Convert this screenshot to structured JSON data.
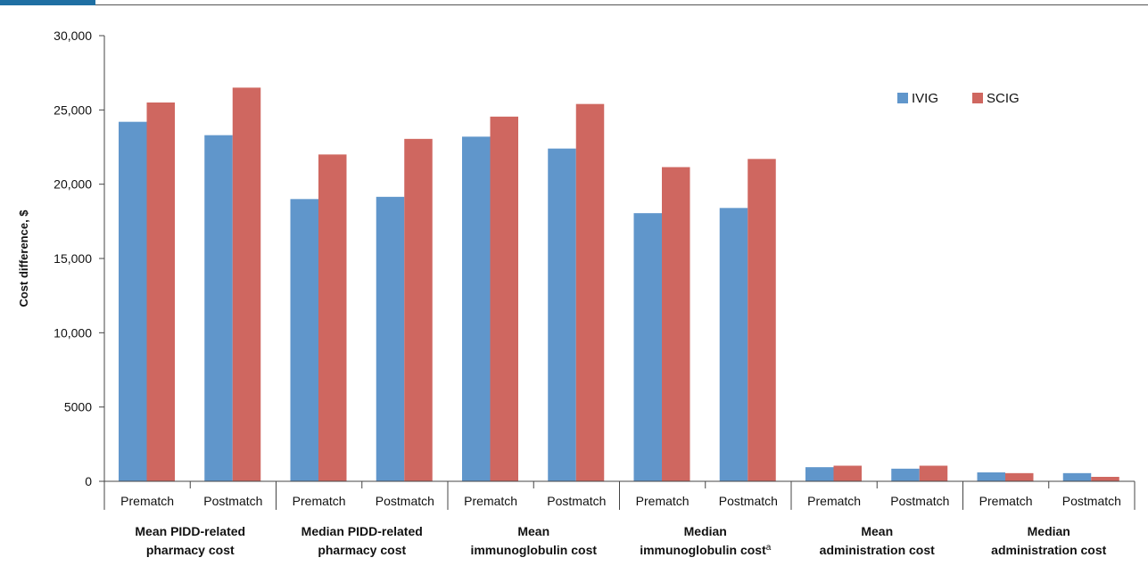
{
  "colors": {
    "accent_bar": "#1f6fa3",
    "ivig": "#6096cb",
    "scig": "#cf6760",
    "axis": "#444444"
  },
  "chart_data": {
    "type": "bar",
    "ylabel": "Cost difference, $",
    "ylim": [
      0,
      30000
    ],
    "yticks": [
      0,
      5000,
      10000,
      15000,
      20000,
      25000,
      30000
    ],
    "ytick_labels": [
      "0",
      "5000",
      "10,000",
      "15,000",
      "20,000",
      "25,000",
      "30,000"
    ],
    "categories": [
      "Prematch",
      "Postmatch",
      "Prematch",
      "Postmatch",
      "Prematch",
      "Postmatch",
      "Prematch",
      "Postmatch",
      "Prematch",
      "Postmatch",
      "Prematch",
      "Postmatch"
    ],
    "groups": [
      {
        "line1": "Mean PIDD-related",
        "line2": "pharmacy cost",
        "superscript": ""
      },
      {
        "line1": "Median PIDD-related",
        "line2": "pharmacy cost",
        "superscript": ""
      },
      {
        "line1": "Mean",
        "line2": "immunoglobulin cost",
        "superscript": ""
      },
      {
        "line1": "Median",
        "line2": "immunoglobulin cost",
        "superscript": "a"
      },
      {
        "line1": "Mean",
        "line2": "administration cost",
        "superscript": ""
      },
      {
        "line1": "Median",
        "line2": "administration cost",
        "superscript": ""
      }
    ],
    "series": [
      {
        "name": "IVIG",
        "color": "#6096cb",
        "values": [
          24200,
          23300,
          19000,
          19150,
          23200,
          22400,
          18050,
          18400,
          950,
          850,
          600,
          550
        ]
      },
      {
        "name": "SCIG",
        "color": "#cf6760",
        "values": [
          25500,
          26500,
          22000,
          23050,
          24550,
          25400,
          21150,
          21700,
          1050,
          1050,
          550,
          300
        ]
      }
    ],
    "legend_position": "top-right",
    "grid": false
  }
}
